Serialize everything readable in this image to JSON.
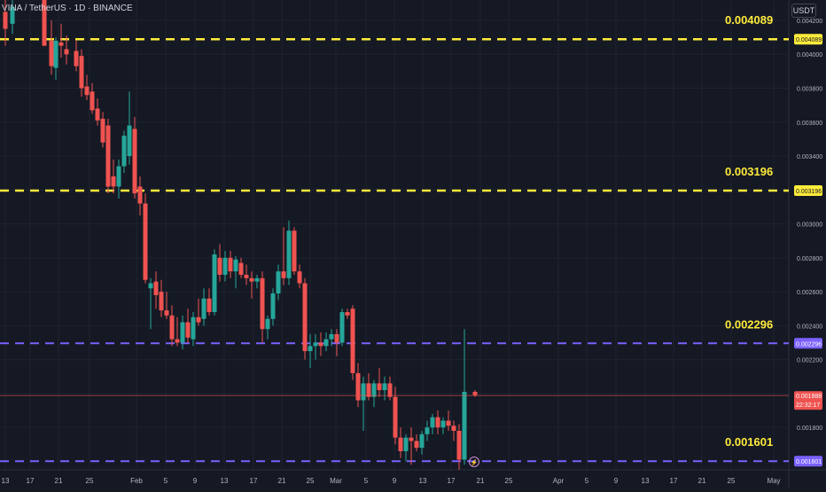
{
  "header": {
    "symbol_title": "VINA / TetherUS · 1D · BINANCE",
    "currency": "USDT"
  },
  "colors": {
    "background": "#151924",
    "grid": "#1f2330",
    "up": "#26a69a",
    "down": "#ef5350",
    "yellow_level": "#ffeb3b",
    "purple_level": "#7b61ff",
    "text": "#b2b5be"
  },
  "levels": [
    {
      "value": 0.004089,
      "label": "0.004089",
      "badge": "0.004089",
      "color": "yellow"
    },
    {
      "value": 0.003196,
      "label": "0.003196",
      "badge": "0.003196",
      "color": "yellow"
    },
    {
      "value": 0.002296,
      "label": "0.002296",
      "badge": "0.002296",
      "color": "purple"
    },
    {
      "value": 0.001601,
      "label": "0.001601",
      "badge": "0.001601",
      "color": "purple"
    }
  ],
  "current_price": {
    "value": 0.001988,
    "label": "0.001988",
    "countdown": "22:32:17"
  },
  "chart_data": {
    "type": "candlestick",
    "title": "",
    "ylim": [
      0.00155,
      0.00432
    ],
    "y_ticks": [
      "0.004200",
      "0.004000",
      "0.003800",
      "0.003600",
      "0.003400",
      "0.003200",
      "0.003000",
      "0.002800",
      "0.002600",
      "0.002400",
      "0.002200",
      "0.002000",
      "0.001800"
    ],
    "y_tick_values": [
      0.0042,
      0.004,
      0.0038,
      0.0036,
      0.0034,
      0.0032,
      0.003,
      0.0028,
      0.0026,
      0.0024,
      0.0022,
      0.002,
      0.0018
    ],
    "x_ticks": [
      {
        "label": "13",
        "x": 6
      },
      {
        "label": "17",
        "x": 34
      },
      {
        "label": "21",
        "x": 66
      },
      {
        "label": "25",
        "x": 101
      },
      {
        "label": "Feb",
        "x": 154
      },
      {
        "label": "5",
        "x": 187
      },
      {
        "label": "9",
        "x": 220
      },
      {
        "label": "13",
        "x": 253
      },
      {
        "label": "17",
        "x": 286
      },
      {
        "label": "21",
        "x": 318
      },
      {
        "label": "25",
        "x": 350
      },
      {
        "label": "Mar",
        "x": 379
      },
      {
        "label": "5",
        "x": 413
      },
      {
        "label": "9",
        "x": 445
      },
      {
        "label": "13",
        "x": 477
      },
      {
        "label": "17",
        "x": 509
      },
      {
        "label": "21",
        "x": 542
      },
      {
        "label": "25",
        "x": 574
      },
      {
        "label": "Apr",
        "x": 630
      },
      {
        "label": "5",
        "x": 662
      },
      {
        "label": "9",
        "x": 695
      },
      {
        "label": "13",
        "x": 728
      },
      {
        "label": "17",
        "x": 760
      },
      {
        "label": "21",
        "x": 792
      },
      {
        "label": "25",
        "x": 825
      },
      {
        "label": "May",
        "x": 873
      }
    ],
    "candles": [
      {
        "x": 6,
        "o": 0.00425,
        "h": 0.00432,
        "l": 0.00405,
        "c": 0.00415
      },
      {
        "x": 14,
        "o": 0.00418,
        "h": 0.00432,
        "l": 0.00412,
        "c": 0.00428
      },
      {
        "x": 50,
        "o": 0.00432,
        "h": 0.00432,
        "l": 0.00405,
        "c": 0.00405
      },
      {
        "x": 58,
        "o": 0.00408,
        "h": 0.0042,
        "l": 0.00388,
        "c": 0.00393
      },
      {
        "x": 63,
        "o": 0.00392,
        "h": 0.0041,
        "l": 0.00385,
        "c": 0.00408
      },
      {
        "x": 69,
        "o": 0.00407,
        "h": 0.00418,
        "l": 0.00398,
        "c": 0.00405
      },
      {
        "x": 75,
        "o": 0.00403,
        "h": 0.00411,
        "l": 0.00394,
        "c": 0.004
      },
      {
        "x": 86,
        "o": 0.00402,
        "h": 0.00408,
        "l": 0.0039,
        "c": 0.00393
      },
      {
        "x": 92,
        "o": 0.00399,
        "h": 0.00403,
        "l": 0.00375,
        "c": 0.0038
      },
      {
        "x": 98,
        "o": 0.00381,
        "h": 0.00388,
        "l": 0.00373,
        "c": 0.00376
      },
      {
        "x": 104,
        "o": 0.00378,
        "h": 0.00383,
        "l": 0.00365,
        "c": 0.00367
      },
      {
        "x": 110,
        "o": 0.00368,
        "h": 0.00374,
        "l": 0.00358,
        "c": 0.00361
      },
      {
        "x": 116,
        "o": 0.00362,
        "h": 0.00366,
        "l": 0.00345,
        "c": 0.00348
      },
      {
        "x": 122,
        "o": 0.00358,
        "h": 0.00362,
        "l": 0.00318,
        "c": 0.00322
      },
      {
        "x": 128,
        "o": 0.00328,
        "h": 0.00338,
        "l": 0.00318,
        "c": 0.00322
      },
      {
        "x": 134,
        "o": 0.00322,
        "h": 0.00338,
        "l": 0.00315,
        "c": 0.00334
      },
      {
        "x": 140,
        "o": 0.00334,
        "h": 0.00355,
        "l": 0.0033,
        "c": 0.00352
      },
      {
        "x": 146,
        "o": 0.0034,
        "h": 0.00378,
        "l": 0.00335,
        "c": 0.00358
      },
      {
        "x": 152,
        "o": 0.00356,
        "h": 0.00363,
        "l": 0.00315,
        "c": 0.00318
      },
      {
        "x": 158,
        "o": 0.00322,
        "h": 0.00328,
        "l": 0.00305,
        "c": 0.00312
      },
      {
        "x": 164,
        "o": 0.00312,
        "h": 0.00318,
        "l": 0.00265,
        "c": 0.00267
      },
      {
        "x": 170,
        "o": 0.00262,
        "h": 0.00268,
        "l": 0.00238,
        "c": 0.00265
      },
      {
        "x": 176,
        "o": 0.00266,
        "h": 0.00272,
        "l": 0.0025,
        "c": 0.00258
      },
      {
        "x": 182,
        "o": 0.0026,
        "h": 0.00267,
        "l": 0.00245,
        "c": 0.00249
      },
      {
        "x": 188,
        "o": 0.00249,
        "h": 0.0026,
        "l": 0.00244,
        "c": 0.00246
      },
      {
        "x": 194,
        "o": 0.00246,
        "h": 0.00252,
        "l": 0.00228,
        "c": 0.00232
      },
      {
        "x": 200,
        "o": 0.00232,
        "h": 0.00245,
        "l": 0.00228,
        "c": 0.0023
      },
      {
        "x": 206,
        "o": 0.0023,
        "h": 0.00246,
        "l": 0.00226,
        "c": 0.00242
      },
      {
        "x": 212,
        "o": 0.00242,
        "h": 0.0025,
        "l": 0.0023,
        "c": 0.00233
      },
      {
        "x": 218,
        "o": 0.00232,
        "h": 0.00248,
        "l": 0.00228,
        "c": 0.00245
      },
      {
        "x": 224,
        "o": 0.00245,
        "h": 0.00256,
        "l": 0.0024,
        "c": 0.00242
      },
      {
        "x": 230,
        "o": 0.00244,
        "h": 0.00262,
        "l": 0.0024,
        "c": 0.00256
      },
      {
        "x": 236,
        "o": 0.00256,
        "h": 0.00262,
        "l": 0.00246,
        "c": 0.00248
      },
      {
        "x": 242,
        "o": 0.00248,
        "h": 0.00285,
        "l": 0.00246,
        "c": 0.00282
      },
      {
        "x": 248,
        "o": 0.0028,
        "h": 0.00288,
        "l": 0.00266,
        "c": 0.0027
      },
      {
        "x": 254,
        "o": 0.0027,
        "h": 0.00284,
        "l": 0.00266,
        "c": 0.0028
      },
      {
        "x": 260,
        "o": 0.0028,
        "h": 0.00284,
        "l": 0.00268,
        "c": 0.00272
      },
      {
        "x": 266,
        "o": 0.00272,
        "h": 0.00281,
        "l": 0.00262,
        "c": 0.00279
      },
      {
        "x": 272,
        "o": 0.00277,
        "h": 0.0028,
        "l": 0.00268,
        "c": 0.0027
      },
      {
        "x": 278,
        "o": 0.0027,
        "h": 0.00276,
        "l": 0.00264,
        "c": 0.00268
      },
      {
        "x": 284,
        "o": 0.00268,
        "h": 0.00272,
        "l": 0.00256,
        "c": 0.00266
      },
      {
        "x": 290,
        "o": 0.00266,
        "h": 0.0027,
        "l": 0.00262,
        "c": 0.00268
      },
      {
        "x": 296,
        "o": 0.00268,
        "h": 0.00272,
        "l": 0.0023,
        "c": 0.00238
      },
      {
        "x": 302,
        "o": 0.00238,
        "h": 0.00246,
        "l": 0.00232,
        "c": 0.00244
      },
      {
        "x": 308,
        "o": 0.00244,
        "h": 0.00262,
        "l": 0.0024,
        "c": 0.00259
      },
      {
        "x": 314,
        "o": 0.00259,
        "h": 0.00276,
        "l": 0.00255,
        "c": 0.00272
      },
      {
        "x": 320,
        "o": 0.00272,
        "h": 0.00298,
        "l": 0.00264,
        "c": 0.00268
      },
      {
        "x": 326,
        "o": 0.00268,
        "h": 0.00302,
        "l": 0.00264,
        "c": 0.00296
      },
      {
        "x": 332,
        "o": 0.00296,
        "h": 0.00298,
        "l": 0.0027,
        "c": 0.00272
      },
      {
        "x": 338,
        "o": 0.00272,
        "h": 0.00276,
        "l": 0.00262,
        "c": 0.00265
      },
      {
        "x": 344,
        "o": 0.00265,
        "h": 0.00268,
        "l": 0.0022,
        "c": 0.00225
      },
      {
        "x": 350,
        "o": 0.00225,
        "h": 0.00235,
        "l": 0.00215,
        "c": 0.00228
      },
      {
        "x": 356,
        "o": 0.00228,
        "h": 0.00235,
        "l": 0.0022,
        "c": 0.0023
      },
      {
        "x": 362,
        "o": 0.0023,
        "h": 0.00236,
        "l": 0.00222,
        "c": 0.00228
      },
      {
        "x": 368,
        "o": 0.00228,
        "h": 0.00236,
        "l": 0.00225,
        "c": 0.00232
      },
      {
        "x": 374,
        "o": 0.00232,
        "h": 0.00238,
        "l": 0.00228,
        "c": 0.00235
      },
      {
        "x": 380,
        "o": 0.00235,
        "h": 0.00238,
        "l": 0.00222,
        "c": 0.0023
      },
      {
        "x": 386,
        "o": 0.0023,
        "h": 0.0025,
        "l": 0.00228,
        "c": 0.00248
      },
      {
        "x": 392,
        "o": 0.00248,
        "h": 0.0025,
        "l": 0.00244,
        "c": 0.00246
      },
      {
        "x": 398,
        "o": 0.0025,
        "h": 0.00252,
        "l": 0.00208,
        "c": 0.00212
      },
      {
        "x": 404,
        "o": 0.00212,
        "h": 0.00218,
        "l": 0.00192,
        "c": 0.00196
      },
      {
        "x": 410,
        "o": 0.00196,
        "h": 0.0021,
        "l": 0.00178,
        "c": 0.00206
      },
      {
        "x": 416,
        "o": 0.00206,
        "h": 0.00212,
        "l": 0.00196,
        "c": 0.00198
      },
      {
        "x": 422,
        "o": 0.00198,
        "h": 0.00208,
        "l": 0.00192,
        "c": 0.00206
      },
      {
        "x": 428,
        "o": 0.00206,
        "h": 0.00215,
        "l": 0.00198,
        "c": 0.00202
      },
      {
        "x": 434,
        "o": 0.00202,
        "h": 0.0021,
        "l": 0.00196,
        "c": 0.00206
      },
      {
        "x": 440,
        "o": 0.00206,
        "h": 0.0021,
        "l": 0.00196,
        "c": 0.00198
      },
      {
        "x": 446,
        "o": 0.00198,
        "h": 0.00204,
        "l": 0.0017,
        "c": 0.00174
      },
      {
        "x": 452,
        "o": 0.00174,
        "h": 0.0018,
        "l": 0.00162,
        "c": 0.00166
      },
      {
        "x": 458,
        "o": 0.00166,
        "h": 0.00176,
        "l": 0.0016,
        "c": 0.00174
      },
      {
        "x": 464,
        "o": 0.00174,
        "h": 0.0018,
        "l": 0.00158,
        "c": 0.00172
      },
      {
        "x": 470,
        "o": 0.00172,
        "h": 0.00176,
        "l": 0.00166,
        "c": 0.00168
      },
      {
        "x": 476,
        "o": 0.00168,
        "h": 0.00178,
        "l": 0.00164,
        "c": 0.00176
      },
      {
        "x": 482,
        "o": 0.00176,
        "h": 0.00184,
        "l": 0.00172,
        "c": 0.0018
      },
      {
        "x": 488,
        "o": 0.0018,
        "h": 0.00188,
        "l": 0.00176,
        "c": 0.00186
      },
      {
        "x": 494,
        "o": 0.00186,
        "h": 0.0019,
        "l": 0.00176,
        "c": 0.0018
      },
      {
        "x": 500,
        "o": 0.0018,
        "h": 0.00186,
        "l": 0.00176,
        "c": 0.00184
      },
      {
        "x": 506,
        "o": 0.00184,
        "h": 0.0019,
        "l": 0.00178,
        "c": 0.00181
      },
      {
        "x": 512,
        "o": 0.00181,
        "h": 0.00184,
        "l": 0.00172,
        "c": 0.00178
      },
      {
        "x": 518,
        "o": 0.00178,
        "h": 0.00182,
        "l": 0.00155,
        "c": 0.00161
      },
      {
        "x": 524,
        "o": 0.00161,
        "h": 0.00238,
        "l": 0.00158,
        "c": 0.00201
      },
      {
        "x": 536,
        "o": 0.00201,
        "h": 0.00202,
        "l": 0.00198,
        "c": 0.00199
      }
    ]
  }
}
